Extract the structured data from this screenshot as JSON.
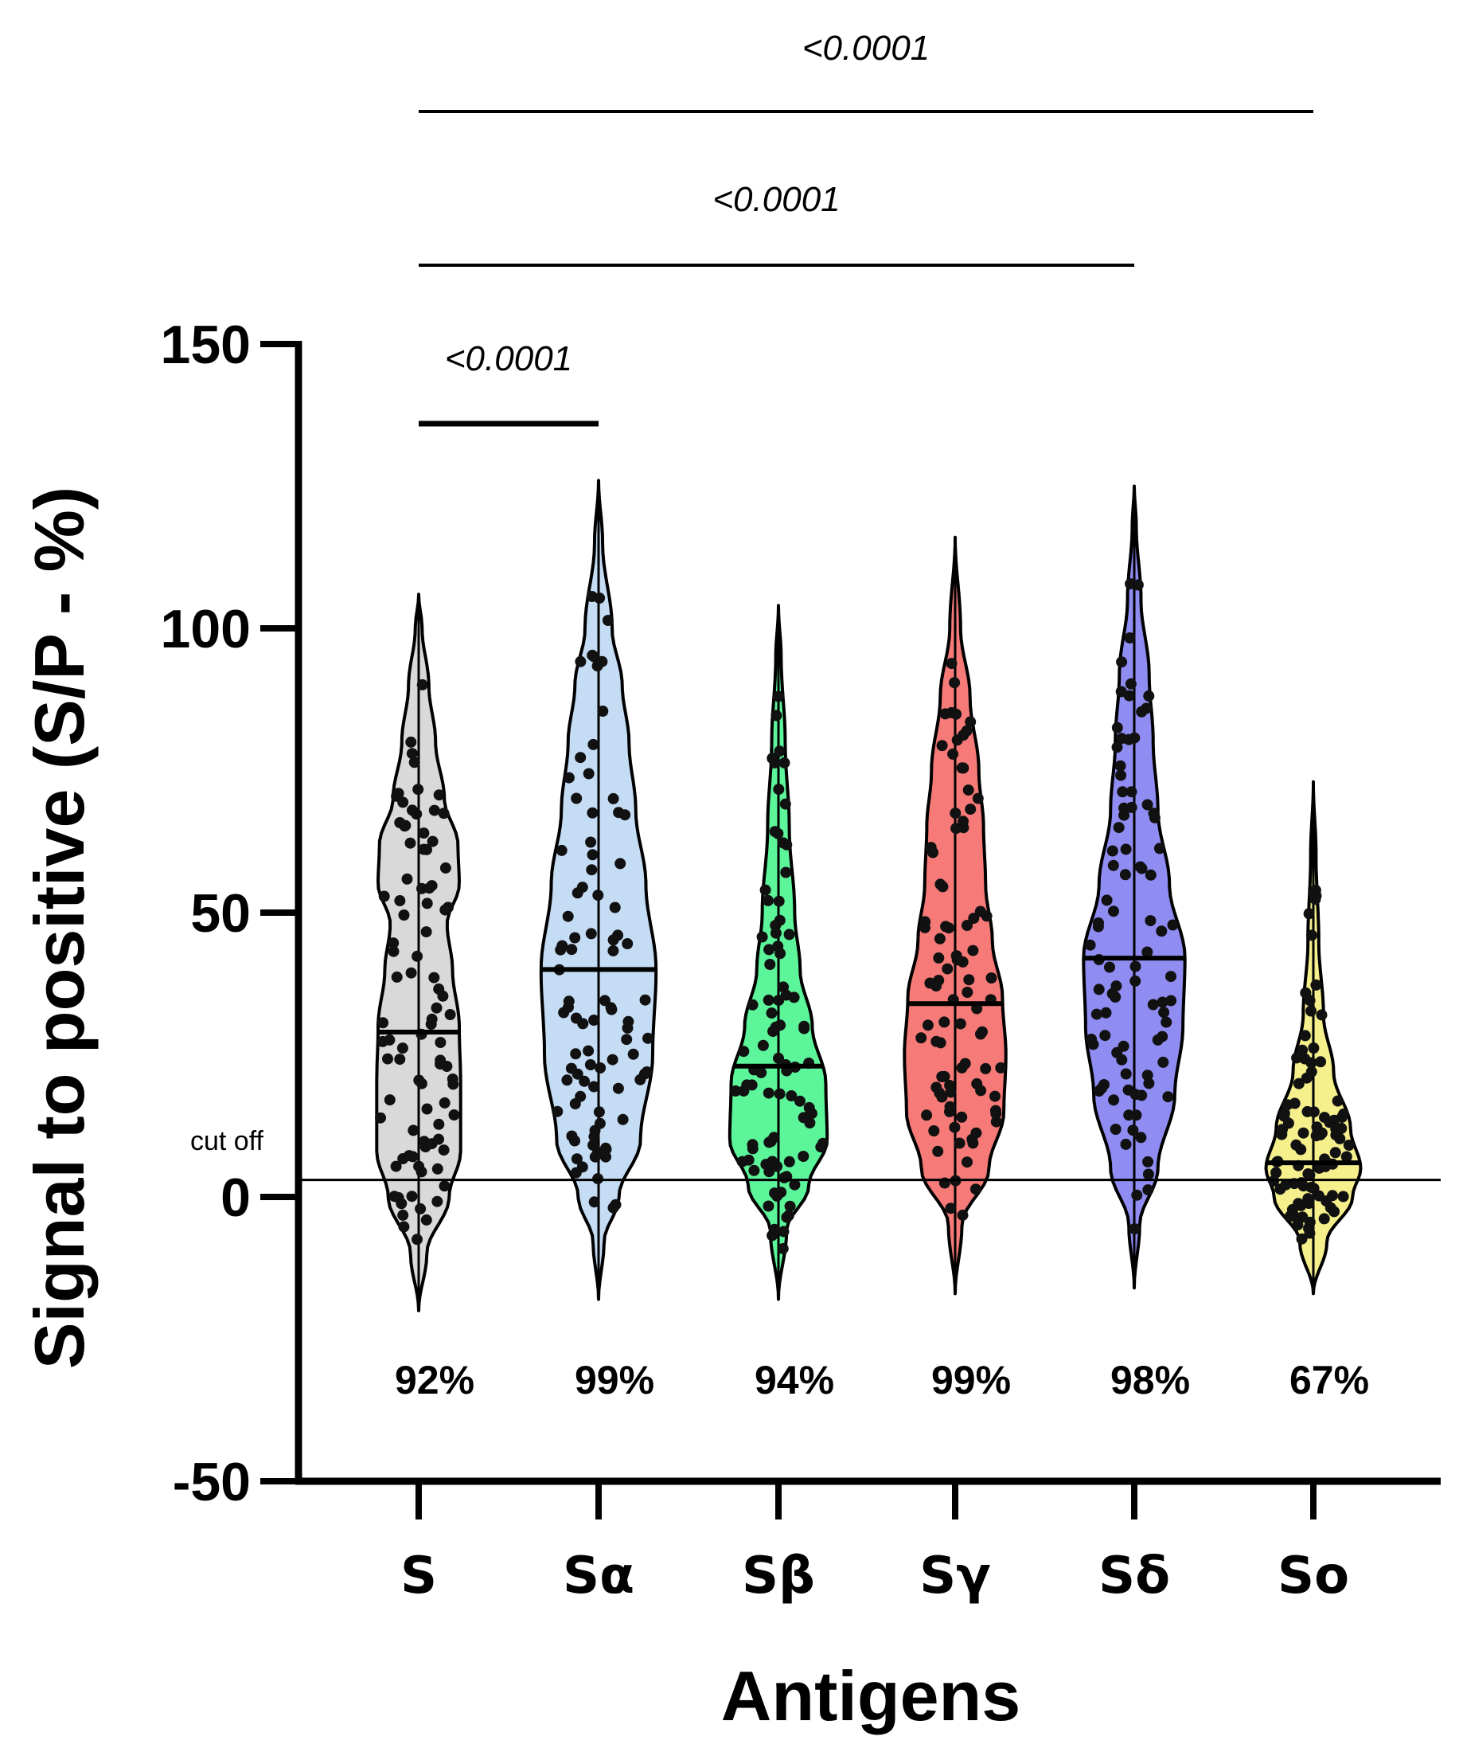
{
  "chart_data": {
    "type": "violin",
    "xlabel": "Antigens",
    "ylabel": "Signal to positive (S/P - %)",
    "ylim": [
      -50,
      150
    ],
    "yticks": [
      -50,
      0,
      50,
      100,
      150
    ],
    "cutoff": {
      "label": "cut off",
      "value": 3
    },
    "series": [
      {
        "category": "S",
        "color": "#d9d9d9",
        "median": 29,
        "percent_label": "92%",
        "min_extent": -20,
        "max_extent": 106
      },
      {
        "category": "Sα",
        "color": "#c5dcf5",
        "median": 40,
        "percent_label": "99%",
        "min_extent": -18,
        "max_extent": 126
      },
      {
        "category": "Sβ",
        "color": "#5cf59a",
        "median": 23,
        "percent_label": "94%",
        "min_extent": -18,
        "max_extent": 104
      },
      {
        "category": "Sγ",
        "color": "#f57a78",
        "median": 34,
        "percent_label": "99%",
        "min_extent": -17,
        "max_extent": 116
      },
      {
        "category": "Sδ",
        "color": "#8f8cf2",
        "median": 42,
        "percent_label": "98%",
        "min_extent": -16,
        "max_extent": 125
      },
      {
        "category": "So",
        "color": "#f5ef8c",
        "median": 6,
        "percent_label": "67%",
        "min_extent": -17,
        "max_extent": 73
      }
    ],
    "comparisons": [
      {
        "from": "S",
        "to": "Sα",
        "label": "<0.0001",
        "bracket_value": 136
      },
      {
        "from": "S",
        "to": "Sδ",
        "label": "<0.0001",
        "bracket_value": null
      },
      {
        "from": "S",
        "to": "So",
        "label": "<0.0001",
        "bracket_value": null
      }
    ]
  }
}
